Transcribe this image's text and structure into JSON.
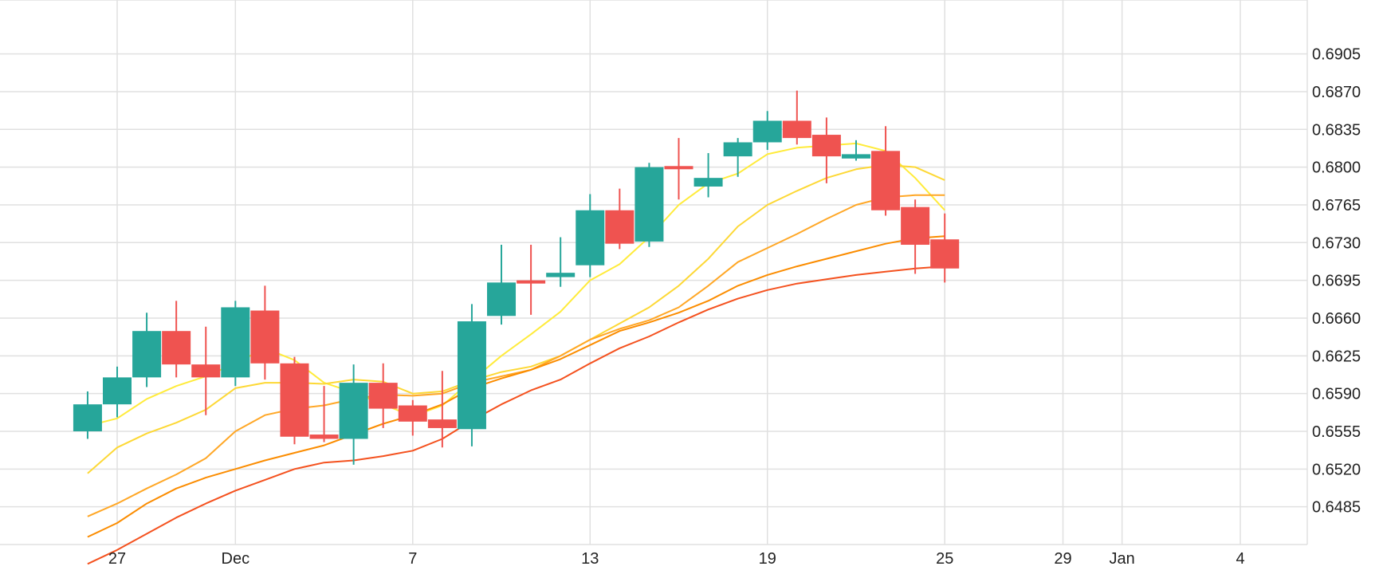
{
  "chart_data": {
    "type": "candlestick",
    "title": "",
    "xlabel": "",
    "ylabel": "",
    "ylim": [
      0.645,
      0.6955
    ],
    "y_ticks": [
      0.6485,
      0.652,
      0.6555,
      0.659,
      0.6625,
      0.666,
      0.6695,
      0.673,
      0.6765,
      0.68,
      0.6835,
      0.687,
      0.6905
    ],
    "y_tick_labels": [
      "0.6485",
      "0.6520",
      "0.6555",
      "0.6590",
      "0.6625",
      "0.6660",
      "0.6695",
      "0.6730",
      "0.6765",
      "0.6800",
      "0.6835",
      "0.6870",
      "0.6905"
    ],
    "x_range": [
      "2020-11-26",
      "2021-01-04"
    ],
    "x_ticks": [
      {
        "date": "2020-11-27",
        "label": "27"
      },
      {
        "date": "2020-12-01",
        "label": "Dec"
      },
      {
        "date": "2020-12-07",
        "label": "7"
      },
      {
        "date": "2020-12-13",
        "label": "13"
      },
      {
        "date": "2020-12-19",
        "label": "19"
      },
      {
        "date": "2020-12-25",
        "label": "25"
      },
      {
        "date": "2020-12-29",
        "label": "29"
      },
      {
        "date": "2020-12-31",
        "label": "Jan"
      },
      {
        "date": "2021-01-04",
        "label": "4"
      }
    ],
    "grid": true,
    "candles": [
      {
        "date": "2020-11-26",
        "open": 0.6555,
        "high": 0.6592,
        "low": 0.6548,
        "close": 0.658
      },
      {
        "date": "2020-11-27",
        "open": 0.658,
        "high": 0.6615,
        "low": 0.6568,
        "close": 0.6605
      },
      {
        "date": "2020-11-28",
        "open": 0.6605,
        "high": 0.6665,
        "low": 0.6596,
        "close": 0.6648
      },
      {
        "date": "2020-11-29",
        "open": 0.6648,
        "high": 0.6676,
        "low": 0.6605,
        "close": 0.6617
      },
      {
        "date": "2020-11-30",
        "open": 0.6617,
        "high": 0.6652,
        "low": 0.657,
        "close": 0.6605
      },
      {
        "date": "2020-12-01",
        "open": 0.6605,
        "high": 0.6676,
        "low": 0.6597,
        "close": 0.667
      },
      {
        "date": "2020-12-02",
        "open": 0.6667,
        "high": 0.669,
        "low": 0.6603,
        "close": 0.6618
      },
      {
        "date": "2020-12-03",
        "open": 0.6618,
        "high": 0.6624,
        "low": 0.6543,
        "close": 0.655
      },
      {
        "date": "2020-12-04",
        "open": 0.6552,
        "high": 0.6597,
        "low": 0.6545,
        "close": 0.6548
      },
      {
        "date": "2020-12-05",
        "open": 0.6548,
        "high": 0.6617,
        "low": 0.6524,
        "close": 0.66
      },
      {
        "date": "2020-12-06",
        "open": 0.66,
        "high": 0.6618,
        "low": 0.6558,
        "close": 0.6576
      },
      {
        "date": "2020-12-07",
        "open": 0.6579,
        "high": 0.6584,
        "low": 0.6551,
        "close": 0.6564
      },
      {
        "date": "2020-12-08",
        "open": 0.6566,
        "high": 0.6611,
        "low": 0.654,
        "close": 0.6558
      },
      {
        "date": "2020-12-09",
        "open": 0.6557,
        "high": 0.6673,
        "low": 0.6541,
        "close": 0.6657
      },
      {
        "date": "2020-12-10",
        "open": 0.6662,
        "high": 0.6728,
        "low": 0.6654,
        "close": 0.6693
      },
      {
        "date": "2020-12-11",
        "open": 0.6695,
        "high": 0.6728,
        "low": 0.6663,
        "close": 0.6693
      },
      {
        "date": "2020-12-12",
        "open": 0.6698,
        "high": 0.6735,
        "low": 0.6689,
        "close": 0.6702
      },
      {
        "date": "2020-12-13",
        "open": 0.6709,
        "high": 0.6775,
        "low": 0.6698,
        "close": 0.676
      },
      {
        "date": "2020-12-14",
        "open": 0.676,
        "high": 0.678,
        "low": 0.6724,
        "close": 0.6729
      },
      {
        "date": "2020-12-15",
        "open": 0.6731,
        "high": 0.6804,
        "low": 0.6726,
        "close": 0.68
      },
      {
        "date": "2020-12-16",
        "open": 0.6801,
        "high": 0.6827,
        "low": 0.677,
        "close": 0.6799
      },
      {
        "date": "2020-12-17",
        "open": 0.6782,
        "high": 0.6813,
        "low": 0.6772,
        "close": 0.679
      },
      {
        "date": "2020-12-18",
        "open": 0.681,
        "high": 0.6827,
        "low": 0.6791,
        "close": 0.6823
      },
      {
        "date": "2020-12-19",
        "open": 0.6823,
        "high": 0.6852,
        "low": 0.6816,
        "close": 0.6843
      },
      {
        "date": "2020-12-20",
        "open": 0.6843,
        "high": 0.6871,
        "low": 0.6821,
        "close": 0.6827
      },
      {
        "date": "2020-12-21",
        "open": 0.683,
        "high": 0.6846,
        "low": 0.6785,
        "close": 0.681
      },
      {
        "date": "2020-12-22",
        "open": 0.6808,
        "high": 0.6825,
        "low": 0.6806,
        "close": 0.6812
      },
      {
        "date": "2020-12-23",
        "open": 0.6815,
        "high": 0.6838,
        "low": 0.6755,
        "close": 0.676
      },
      {
        "date": "2020-12-24",
        "open": 0.6763,
        "high": 0.677,
        "low": 0.6701,
        "close": 0.6728
      },
      {
        "date": "2020-12-25",
        "open": 0.6733,
        "high": 0.6757,
        "low": 0.6693,
        "close": 0.6706
      }
    ],
    "candle_dates_note": "",
    "moving_averages": [
      {
        "color": "#ffeb3b",
        "values": [
          0.656,
          0.6567,
          0.6585,
          0.6597,
          0.6606,
          0.6618,
          0.6632,
          0.6621,
          0.66,
          0.6591,
          0.658,
          0.6569,
          0.6579,
          0.6602,
          0.6625,
          0.6645,
          0.6666,
          0.6695,
          0.671,
          0.6735,
          0.6765,
          0.6785,
          0.6794,
          0.6812,
          0.6818,
          0.682,
          0.6822,
          0.6815,
          0.679,
          0.676
        ]
      },
      {
        "color": "#fdd835",
        "values": [
          0.6516,
          0.654,
          0.6553,
          0.6563,
          0.6575,
          0.6595,
          0.66,
          0.66,
          0.6599,
          0.6603,
          0.6601,
          0.659,
          0.6592,
          0.6602,
          0.661,
          0.6615,
          0.6625,
          0.664,
          0.6655,
          0.667,
          0.669,
          0.6715,
          0.6745,
          0.6765,
          0.6778,
          0.679,
          0.6798,
          0.6802,
          0.68,
          0.6788
        ]
      },
      {
        "color": "#ffa726",
        "values": [
          0.6476,
          0.6488,
          0.6502,
          0.6515,
          0.653,
          0.6555,
          0.657,
          0.6576,
          0.6579,
          0.6585,
          0.6589,
          0.6588,
          0.659,
          0.66,
          0.6606,
          0.6612,
          0.6625,
          0.664,
          0.665,
          0.6658,
          0.667,
          0.669,
          0.6712,
          0.6725,
          0.6738,
          0.6752,
          0.6765,
          0.6772,
          0.6774,
          0.6774
        ]
      },
      {
        "color": "#fb8c00",
        "values": [
          0.6457,
          0.647,
          0.6488,
          0.6502,
          0.6512,
          0.652,
          0.6528,
          0.6535,
          0.6542,
          0.6552,
          0.6562,
          0.657,
          0.658,
          0.6595,
          0.6604,
          0.6612,
          0.6622,
          0.6635,
          0.6648,
          0.6656,
          0.6665,
          0.6676,
          0.669,
          0.67,
          0.6708,
          0.6715,
          0.6722,
          0.6729,
          0.6734,
          0.6736
        ]
      },
      {
        "color": "#f4511e",
        "values": [
          0.6432,
          0.6445,
          0.646,
          0.6475,
          0.6488,
          0.65,
          0.651,
          0.652,
          0.6526,
          0.6528,
          0.6532,
          0.6537,
          0.6548,
          0.6565,
          0.658,
          0.6593,
          0.6603,
          0.6618,
          0.6632,
          0.6643,
          0.6656,
          0.6668,
          0.6678,
          0.6686,
          0.6692,
          0.6696,
          0.67,
          0.6703,
          0.6706,
          0.6708
        ]
      }
    ],
    "colors": {
      "up": "#26a69a",
      "down": "#ef5350",
      "grid": "#e0e0e0",
      "axis_text": "#222222"
    }
  }
}
